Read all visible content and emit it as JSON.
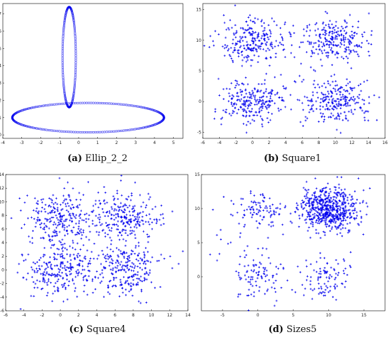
{
  "colors": {
    "points": "#0000ee",
    "axes": "#000000"
  },
  "chart_data": [
    {
      "id": "a",
      "caption_letter": "(a)",
      "caption_name": "Ellip_2_2",
      "type": "scatter",
      "marker": "circle-outline",
      "xlim": [
        -4,
        5.5
      ],
      "ylim": [
        -0.2,
        7.6
      ],
      "xticks": [
        -4,
        -3,
        -2,
        -1,
        0,
        1,
        2,
        3,
        4,
        5
      ],
      "yticks": [
        0,
        1,
        2,
        3,
        4,
        5,
        6,
        7
      ],
      "grid": false,
      "series": [
        {
          "shape": "ellipse",
          "center": [
            -0.5,
            4.5
          ],
          "rx": 0.35,
          "ry": 2.9,
          "n_points": 180
        },
        {
          "shape": "ellipse",
          "center": [
            0.5,
            1.0
          ],
          "rx": 4.0,
          "ry": 0.85,
          "n_points": 260
        }
      ]
    },
    {
      "id": "b",
      "caption_letter": "(b)",
      "caption_name": "Square1",
      "type": "scatter",
      "marker": "plus",
      "xlim": [
        -6,
        16
      ],
      "ylim": [
        -6,
        16
      ],
      "xticks": [
        -6,
        -4,
        -2,
        0,
        2,
        4,
        6,
        8,
        10,
        12,
        14,
        16
      ],
      "yticks": [
        -5,
        0,
        5,
        10,
        15
      ],
      "grid": false,
      "clusters": [
        {
          "center": [
            0,
            10
          ],
          "sd": [
            2.0,
            1.8
          ],
          "n": 250
        },
        {
          "center": [
            10,
            10
          ],
          "sd": [
            2.0,
            1.8
          ],
          "n": 250
        },
        {
          "center": [
            0,
            0
          ],
          "sd": [
            2.0,
            1.8
          ],
          "n": 250
        },
        {
          "center": [
            10,
            0
          ],
          "sd": [
            2.0,
            1.8
          ],
          "n": 250
        }
      ]
    },
    {
      "id": "c",
      "caption_letter": "(c)",
      "caption_name": "Square4",
      "type": "scatter",
      "marker": "plus",
      "xlim": [
        -6,
        14
      ],
      "ylim": [
        -6,
        14
      ],
      "xticks": [
        -6,
        -4,
        -2,
        0,
        2,
        4,
        6,
        8,
        10,
        12,
        14
      ],
      "yticks": [
        -6,
        -4,
        -2,
        0,
        2,
        4,
        6,
        8,
        10,
        12,
        14
      ],
      "grid": false,
      "clusters": [
        {
          "center": [
            0,
            7.5
          ],
          "sd": [
            2.0,
            2.0
          ],
          "n": 250
        },
        {
          "center": [
            7,
            7.5
          ],
          "sd": [
            2.0,
            2.0
          ],
          "n": 250
        },
        {
          "center": [
            0,
            0
          ],
          "sd": [
            2.0,
            2.0
          ],
          "n": 250
        },
        {
          "center": [
            7,
            0
          ],
          "sd": [
            2.0,
            2.0
          ],
          "n": 250
        }
      ]
    },
    {
      "id": "d",
      "caption_letter": "(d)",
      "caption_name": "Sizes5",
      "type": "scatter",
      "marker": "plus",
      "xlim": [
        -8,
        18
      ],
      "ylim": [
        -5,
        15
      ],
      "xticks": [
        -5,
        0,
        5,
        10,
        15
      ],
      "yticks": [
        0,
        5,
        10,
        15
      ],
      "grid": false,
      "clusters": [
        {
          "center": [
            10,
            10
          ],
          "sd": [
            2.0,
            1.6
          ],
          "n": 600
        },
        {
          "center": [
            0,
            10
          ],
          "sd": [
            2.0,
            1.5
          ],
          "n": 100
        },
        {
          "center": [
            0,
            0
          ],
          "sd": [
            1.8,
            1.8
          ],
          "n": 100
        },
        {
          "center": [
            10,
            0
          ],
          "sd": [
            2.0,
            1.8
          ],
          "n": 100
        },
        {
          "center": [
            -5,
            5
          ],
          "sd": [
            1.5,
            1.5
          ],
          "n": 10
        }
      ]
    }
  ]
}
